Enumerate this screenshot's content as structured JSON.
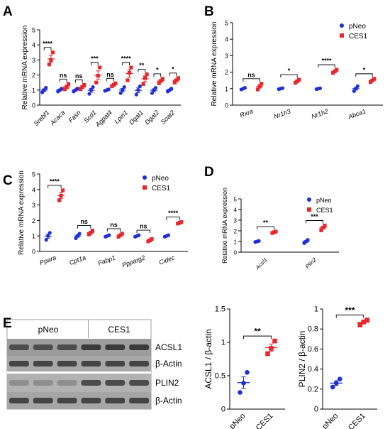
{
  "figure": {
    "colors": {
      "pNeo": "#1f2fd6",
      "CES1": "#e8262b",
      "axis": "#000000"
    }
  },
  "chart_data": [
    {
      "panel": "A",
      "type": "scatter",
      "ylabel": "Relative mRNA expression",
      "ylim": [
        0,
        5
      ],
      "yticks": [
        0,
        1,
        2,
        3,
        4,
        5
      ],
      "legend_position": "none",
      "categories": [
        "Srebf1",
        "Acaca",
        "Fasn",
        "Scd1",
        "Agpat4",
        "Lpin1",
        "Dgat1",
        "Dgat2",
        "Soat2"
      ],
      "significance": [
        "****",
        "ns",
        "ns",
        "***",
        "ns",
        "****",
        "**",
        "*",
        "*"
      ],
      "series": [
        {
          "name": "pNeo",
          "values": [
            [
              0.85,
              1.0,
              1.15
            ],
            [
              0.9,
              1.0,
              1.1
            ],
            [
              0.9,
              1.0,
              1.1
            ],
            [
              0.75,
              1.0,
              1.2
            ],
            [
              0.95,
              1.0,
              1.05
            ],
            [
              0.8,
              1.0,
              1.2
            ],
            [
              0.7,
              1.0,
              1.25
            ],
            [
              0.8,
              1.0,
              1.15
            ],
            [
              0.9,
              1.0,
              1.1
            ]
          ]
        },
        {
          "name": "CES1",
          "values": [
            [
              2.7,
              3.0,
              3.5
            ],
            [
              1.05,
              1.2,
              1.4
            ],
            [
              1.05,
              1.2,
              1.35
            ],
            [
              1.5,
              1.95,
              2.5
            ],
            [
              1.25,
              1.35,
              1.45
            ],
            [
              1.65,
              2.15,
              2.5
            ],
            [
              1.4,
              1.8,
              2.05
            ],
            [
              1.45,
              1.6,
              1.75
            ],
            [
              1.5,
              1.65,
              1.8
            ]
          ]
        }
      ]
    },
    {
      "panel": "B",
      "type": "scatter",
      "ylabel": "Relative mRNA expression",
      "ylim": [
        0,
        5
      ],
      "yticks": [
        0,
        1,
        2,
        3,
        4,
        5
      ],
      "legend_position": "top-right",
      "categories": [
        "Rxra",
        "Nr1h3",
        "Nr1h2",
        "Abca1"
      ],
      "significance": [
        "ns",
        "*",
        "****",
        "*"
      ],
      "series": [
        {
          "name": "pNeo",
          "values": [
            [
              0.95,
              1.0,
              1.05
            ],
            [
              0.97,
              1.0,
              1.03
            ],
            [
              0.97,
              1.0,
              1.02
            ],
            [
              0.85,
              1.0,
              1.15
            ]
          ]
        },
        {
          "name": "CES1",
          "values": [
            [
              0.95,
              1.15,
              1.3
            ],
            [
              1.35,
              1.45,
              1.55
            ],
            [
              1.95,
              2.05,
              2.15
            ],
            [
              1.4,
              1.5,
              1.6
            ]
          ]
        }
      ]
    },
    {
      "panel": "C",
      "type": "scatter",
      "ylabel": "Relative mRNA expression",
      "ylim": [
        0,
        5
      ],
      "yticks": [
        0,
        1,
        2,
        3,
        4,
        5
      ],
      "legend_position": "top-right",
      "categories": [
        "Ppara",
        "Cpt1a",
        "Fabp1",
        "Ppparg2",
        "Cidec"
      ],
      "significance": [
        "****",
        "ns",
        "ns",
        "ns",
        "****"
      ],
      "series": [
        {
          "name": "pNeo",
          "values": [
            [
              0.75,
              1.0,
              1.2
            ],
            [
              0.85,
              1.0,
              1.15
            ],
            [
              0.95,
              1.0,
              1.05
            ],
            [
              0.95,
              1.0,
              1.05
            ],
            [
              0.95,
              1.0,
              1.05
            ]
          ]
        },
        {
          "name": "CES1",
          "values": [
            [
              3.3,
              3.6,
              3.95
            ],
            [
              1.1,
              1.2,
              1.35
            ],
            [
              0.95,
              1.05,
              1.15
            ],
            [
              0.65,
              0.72,
              0.8
            ],
            [
              1.8,
              1.85,
              1.9
            ]
          ]
        }
      ]
    },
    {
      "panel": "D",
      "type": "scatter",
      "ylabel": "Relative mRNA expression",
      "ylim": [
        0,
        5
      ],
      "yticks": [
        0,
        1,
        2,
        3,
        4,
        5
      ],
      "legend_position": "top-right",
      "categories": [
        "Acsl1",
        "Plin2"
      ],
      "significance": [
        "**",
        "***"
      ],
      "series": [
        {
          "name": "pNeo",
          "values": [
            [
              0.95,
              1.0,
              1.05
            ],
            [
              0.85,
              1.0,
              1.15
            ]
          ]
        },
        {
          "name": "CES1",
          "values": [
            [
              1.8,
              1.87,
              1.93
            ],
            [
              2.05,
              2.3,
              2.5
            ]
          ]
        }
      ]
    },
    {
      "panel": "E-ACSL1",
      "type": "scatter",
      "ylabel": "ACSL1 / β-actin",
      "ylim": [
        0,
        1.5
      ],
      "yticks": [
        0.0,
        0.5,
        1.0,
        1.5
      ],
      "categories": [
        "pNeo",
        "CES1"
      ],
      "significance": [
        "**"
      ],
      "series": [
        {
          "name": "pNeo",
          "values": [
            [
              0.25,
              0.39,
              0.55
            ]
          ]
        },
        {
          "name": "CES1",
          "values": [
            [
              0.83,
              0.91,
              1.02
            ]
          ]
        }
      ]
    },
    {
      "panel": "E-PLIN2",
      "type": "scatter",
      "ylabel": "PLIN2 / β-actin",
      "ylim": [
        0,
        1.0
      ],
      "yticks": [
        0.0,
        0.2,
        0.4,
        0.6,
        0.8,
        1.0
      ],
      "categories": [
        "pNeo",
        "CES1"
      ],
      "significance": [
        "***"
      ],
      "series": [
        {
          "name": "pNeo",
          "values": [
            [
              0.22,
              0.26,
              0.3
            ]
          ]
        },
        {
          "name": "CES1",
          "values": [
            [
              0.84,
              0.87,
              0.89
            ]
          ]
        }
      ]
    }
  ],
  "blot": {
    "panel_letter": "E",
    "group_labels": [
      "pNeo",
      "CES1"
    ],
    "lane_count": 6,
    "band_labels": [
      "ACSL1",
      "β-Actin",
      "PLIN2",
      "β-Actin"
    ]
  },
  "panel_letters": [
    "A",
    "B",
    "C",
    "D",
    "E"
  ]
}
